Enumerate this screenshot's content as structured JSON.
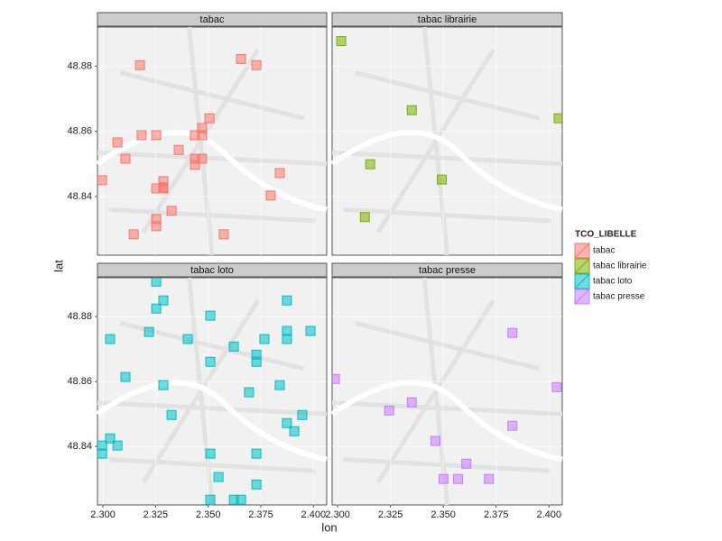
{
  "chart_data": [
    {
      "type": "scatter",
      "series": [
        {
          "name": "tabac",
          "color": "#F8766D",
          "x": [
            2.3176,
            2.3656,
            2.3729,
            2.3506,
            2.3471,
            2.3471,
            2.3437,
            2.3471,
            2.3437,
            2.3437,
            2.336,
            2.3184,
            2.3253,
            2.3069,
            2.3107,
            2.2996,
            2.3287,
            2.3287,
            2.3253,
            2.3287,
            2.3326,
            2.3253,
            2.3253,
            2.3146,
            2.3574,
            2.384,
            2.3797
          ],
          "y": [
            48.8803,
            48.8822,
            48.8803,
            48.864,
            48.861,
            48.8588,
            48.8588,
            48.8516,
            48.8516,
            48.8497,
            48.8543,
            48.8588,
            48.8588,
            48.8566,
            48.8516,
            48.845,
            48.8447,
            48.8428,
            48.8425,
            48.8425,
            48.8356,
            48.8331,
            48.8309,
            48.8284,
            48.8284,
            48.8472,
            48.8403
          ]
        }
      ],
      "xlim": [
        2.2974,
        2.4063
      ],
      "ylim": [
        48.822,
        48.892
      ],
      "xticks": [
        {
          "value": 2.3,
          "label": "2.300"
        },
        {
          "value": 2.325,
          "label": "2.325"
        },
        {
          "value": 2.35,
          "label": "2.350"
        },
        {
          "value": 2.375,
          "label": "2.375"
        },
        {
          "value": 2.4,
          "label": "2.400"
        }
      ],
      "yticks": [
        48.84,
        48.86,
        48.88
      ]
    },
    {
      "type": "scatter",
      "series": [
        {
          "name": "tabac librairie",
          "color": "#7CAE00",
          "x": [
            2.3017,
            2.3351,
            2.3154,
            2.3493,
            2.3129,
            2.4046
          ],
          "y": [
            48.8877,
            48.8665,
            48.8499,
            48.8452,
            48.8337,
            48.864
          ]
        }
      ],
      "xlim": [
        2.2974,
        2.4063
      ],
      "ylim": [
        48.822,
        48.892
      ],
      "xticks": [
        {
          "value": 2.3,
          "label": "2.300"
        },
        {
          "value": 2.325,
          "label": "2.325"
        },
        {
          "value": 2.35,
          "label": "2.350"
        },
        {
          "value": 2.375,
          "label": "2.375"
        },
        {
          "value": 2.4,
          "label": "2.400"
        }
      ],
      "yticks": [
        48.84,
        48.86,
        48.88
      ]
    },
    {
      "type": "scatter",
      "series": [
        {
          "name": "tabac loto",
          "color": "#00BFC4",
          "x": [
            2.3253,
            2.3287,
            2.3253,
            2.351,
            2.3874,
            2.3219,
            2.3034,
            2.3403,
            2.3622,
            2.3767,
            2.3874,
            2.3874,
            2.3986,
            2.3729,
            2.3729,
            2.351,
            2.3107,
            2.3287,
            2.384,
            2.3694,
            2.3326,
            2.3874,
            2.3947,
            2.3909,
            2.3034,
            2.2996,
            2.3069,
            2.2996,
            2.351,
            2.3729,
            2.3549,
            2.3729,
            2.351,
            2.3622,
            2.3656
          ],
          "y": [
            48.8908,
            48.885,
            48.8825,
            48.8803,
            48.885,
            48.8753,
            48.8731,
            48.8731,
            48.8708,
            48.8731,
            48.8756,
            48.8731,
            48.8756,
            48.8683,
            48.8661,
            48.8661,
            48.8614,
            48.8589,
            48.8589,
            48.8567,
            48.8497,
            48.8472,
            48.8497,
            48.8447,
            48.8425,
            48.8403,
            48.8403,
            48.8378,
            48.8378,
            48.8378,
            48.8306,
            48.8283,
            48.8236,
            48.8236,
            48.8236
          ]
        }
      ],
      "xlim": [
        2.2974,
        2.4063
      ],
      "ylim": [
        48.822,
        48.892
      ],
      "xticks": [
        {
          "value": 2.3,
          "label": "2.300"
        },
        {
          "value": 2.325,
          "label": "2.325"
        },
        {
          "value": 2.35,
          "label": "2.350"
        },
        {
          "value": 2.375,
          "label": "2.375"
        },
        {
          "value": 2.4,
          "label": "2.400"
        }
      ],
      "yticks": [
        48.84,
        48.86,
        48.88
      ]
    },
    {
      "type": "scatter",
      "series": [
        {
          "name": "tabac presse",
          "color": "#C77CFF",
          "x": [
            2.2987,
            2.3827,
            2.3351,
            2.3244,
            2.3463,
            2.3609,
            2.3827,
            2.3501,
            2.357,
            2.3716,
            2.4037
          ],
          "y": [
            48.8608,
            48.875,
            48.8536,
            48.8511,
            48.8417,
            48.8347,
            48.8464,
            48.83,
            48.83,
            48.83,
            48.8583
          ]
        }
      ],
      "xlim": [
        2.2974,
        2.4063
      ],
      "ylim": [
        48.822,
        48.892
      ],
      "xticks": [
        {
          "value": 2.3,
          "label": "2.300"
        },
        {
          "value": 2.325,
          "label": "2.325"
        },
        {
          "value": 2.35,
          "label": "2.350"
        },
        {
          "value": 2.375,
          "label": "2.375"
        },
        {
          "value": 2.4,
          "label": "2.400"
        }
      ],
      "yticks": [
        48.84,
        48.86,
        48.88
      ]
    }
  ],
  "axis_labels": {
    "x": "lon",
    "y": "lat"
  },
  "legend_title": "TCO_LIBELLE"
}
